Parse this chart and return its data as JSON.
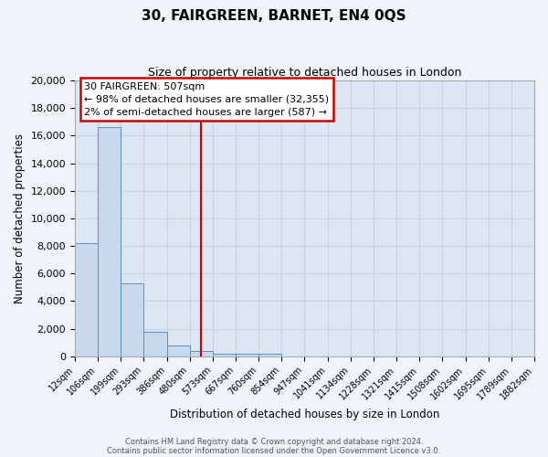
{
  "title": "30, FAIRGREEN, BARNET, EN4 0QS",
  "subtitle": "Size of property relative to detached houses in London",
  "xlabel": "Distribution of detached houses by size in London",
  "ylabel": "Number of detached properties",
  "bar_color": "#c8d9ee",
  "bar_edge_color": "#5b8fc4",
  "bins": [
    "12sqm",
    "106sqm",
    "199sqm",
    "293sqm",
    "386sqm",
    "480sqm",
    "573sqm",
    "667sqm",
    "760sqm",
    "854sqm",
    "947sqm",
    "1041sqm",
    "1134sqm",
    "1228sqm",
    "1321sqm",
    "1415sqm",
    "1508sqm",
    "1602sqm",
    "1695sqm",
    "1789sqm",
    "1882sqm"
  ],
  "values": [
    8200,
    16600,
    5300,
    1750,
    800,
    350,
    200,
    150,
    150,
    0,
    0,
    0,
    0,
    0,
    0,
    0,
    0,
    0,
    0,
    0
  ],
  "red_line_x": 4.48,
  "ylim": [
    0,
    20000
  ],
  "yticks": [
    0,
    2000,
    4000,
    6000,
    8000,
    10000,
    12000,
    14000,
    16000,
    18000,
    20000
  ],
  "annotation_title": "30 FAIRGREEN: 507sqm",
  "annotation_line1": "← 98% of detached houses are smaller (32,355)",
  "annotation_line2": "2% of semi-detached houses are larger (587) →",
  "annotation_box_color": "#ffffff",
  "annotation_box_edge": "#cc0000",
  "vline_color": "#cc0000",
  "grid_color": "#c8d4e4",
  "plot_bg_color": "#dde7f3",
  "fig_bg_color": "#f0f4fa",
  "footer1": "Contains HM Land Registry data © Crown copyright and database right 2024.",
  "footer2": "Contains public sector information licensed under the Open Government Licence v3.0."
}
